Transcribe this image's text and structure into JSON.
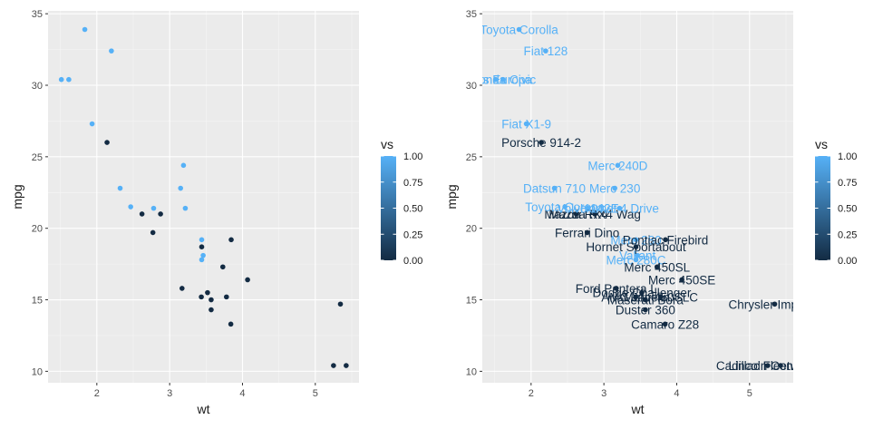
{
  "colors": {
    "panel": "#ebebeb",
    "grid_major": "#ffffff",
    "grid_minor": "#f5f5f5",
    "low": "#132b43",
    "high": "#56b1f7"
  },
  "chart_data": [
    {
      "type": "scatter",
      "xlabel": "wt",
      "ylabel": "mpg",
      "xlim": [
        1.33,
        5.6
      ],
      "ylim": [
        9.2,
        35.2
      ],
      "xticks": [
        2,
        3,
        4,
        5
      ],
      "yticks": [
        10,
        15,
        20,
        25,
        30,
        35
      ],
      "grid": true,
      "legend": {
        "title": "vs",
        "placement": "right",
        "breaks": [
          "0.00",
          "0.25",
          "0.50",
          "0.75",
          "1.00"
        ]
      },
      "points": [
        {
          "x": 2.62,
          "y": 21.0,
          "vs": 0
        },
        {
          "x": 2.875,
          "y": 21.0,
          "vs": 0
        },
        {
          "x": 2.32,
          "y": 22.8,
          "vs": 1
        },
        {
          "x": 3.215,
          "y": 21.4,
          "vs": 1
        },
        {
          "x": 3.44,
          "y": 18.7,
          "vs": 0
        },
        {
          "x": 3.46,
          "y": 18.1,
          "vs": 1
        },
        {
          "x": 3.57,
          "y": 14.3,
          "vs": 0
        },
        {
          "x": 3.19,
          "y": 24.4,
          "vs": 1
        },
        {
          "x": 3.15,
          "y": 22.8,
          "vs": 1
        },
        {
          "x": 3.44,
          "y": 19.2,
          "vs": 1
        },
        {
          "x": 3.44,
          "y": 17.8,
          "vs": 1
        },
        {
          "x": 4.07,
          "y": 16.4,
          "vs": 0
        },
        {
          "x": 3.73,
          "y": 17.3,
          "vs": 0
        },
        {
          "x": 3.78,
          "y": 15.2,
          "vs": 0
        },
        {
          "x": 5.25,
          "y": 10.4,
          "vs": 0
        },
        {
          "x": 5.424,
          "y": 10.4,
          "vs": 0
        },
        {
          "x": 5.345,
          "y": 14.7,
          "vs": 0
        },
        {
          "x": 2.2,
          "y": 32.4,
          "vs": 1
        },
        {
          "x": 1.615,
          "y": 30.4,
          "vs": 1
        },
        {
          "x": 1.835,
          "y": 33.9,
          "vs": 1
        },
        {
          "x": 2.465,
          "y": 21.5,
          "vs": 1
        },
        {
          "x": 3.52,
          "y": 15.5,
          "vs": 0
        },
        {
          "x": 3.435,
          "y": 15.2,
          "vs": 0
        },
        {
          "x": 3.84,
          "y": 13.3,
          "vs": 0
        },
        {
          "x": 3.845,
          "y": 19.2,
          "vs": 0
        },
        {
          "x": 1.935,
          "y": 27.3,
          "vs": 1
        },
        {
          "x": 2.14,
          "y": 26.0,
          "vs": 0
        },
        {
          "x": 1.513,
          "y": 30.4,
          "vs": 1
        },
        {
          "x": 3.17,
          "y": 15.8,
          "vs": 0
        },
        {
          "x": 2.77,
          "y": 19.7,
          "vs": 0
        },
        {
          "x": 3.57,
          "y": 15.0,
          "vs": 0
        },
        {
          "x": 2.78,
          "y": 21.4,
          "vs": 1
        }
      ]
    },
    {
      "type": "scatter",
      "xlabel": "wt",
      "ylabel": "mpg",
      "xlim": [
        1.33,
        5.6
      ],
      "ylim": [
        9.2,
        35.2
      ],
      "xticks": [
        2,
        3,
        4,
        5
      ],
      "yticks": [
        10,
        15,
        20,
        25,
        30,
        35
      ],
      "grid": true,
      "legend": {
        "title": "vs",
        "placement": "right",
        "breaks": [
          "0.00",
          "0.25",
          "0.50",
          "0.75",
          "1.00"
        ]
      },
      "points": [
        {
          "x": 2.62,
          "y": 21.0,
          "vs": 0,
          "label": "Mazda RX4"
        },
        {
          "x": 2.875,
          "y": 21.0,
          "vs": 0,
          "label": "Mazda RX4 Wag"
        },
        {
          "x": 2.32,
          "y": 22.8,
          "vs": 1,
          "label": "Datsun 710"
        },
        {
          "x": 3.215,
          "y": 21.4,
          "vs": 1,
          "label": "Hornet 4 Drive"
        },
        {
          "x": 3.44,
          "y": 18.7,
          "vs": 0,
          "label": "Hornet Sportabout"
        },
        {
          "x": 3.46,
          "y": 18.1,
          "vs": 1,
          "label": "Valiant"
        },
        {
          "x": 3.57,
          "y": 14.3,
          "vs": 0,
          "label": "Duster 360"
        },
        {
          "x": 3.19,
          "y": 24.4,
          "vs": 1,
          "label": "Merc 240D"
        },
        {
          "x": 3.15,
          "y": 22.8,
          "vs": 1,
          "label": "Merc 230"
        },
        {
          "x": 3.44,
          "y": 19.2,
          "vs": 1,
          "label": "Merc 280"
        },
        {
          "x": 3.44,
          "y": 17.8,
          "vs": 1,
          "label": "Merc 280C"
        },
        {
          "x": 4.07,
          "y": 16.4,
          "vs": 0,
          "label": "Merc 450SE"
        },
        {
          "x": 3.73,
          "y": 17.3,
          "vs": 0,
          "label": "Merc 450SL"
        },
        {
          "x": 3.78,
          "y": 15.2,
          "vs": 0,
          "label": "Merc 450SLC"
        },
        {
          "x": 5.25,
          "y": 10.4,
          "vs": 0,
          "label": "Cadillac Fleetwood"
        },
        {
          "x": 5.424,
          "y": 10.4,
          "vs": 0,
          "label": "Lincoln Continental"
        },
        {
          "x": 5.345,
          "y": 14.7,
          "vs": 0,
          "label": "Chrysler Imperial"
        },
        {
          "x": 2.2,
          "y": 32.4,
          "vs": 1,
          "label": "Fiat 128"
        },
        {
          "x": 1.615,
          "y": 30.4,
          "vs": 1,
          "label": "Honda Civic"
        },
        {
          "x": 1.835,
          "y": 33.9,
          "vs": 1,
          "label": "Toyota Corolla"
        },
        {
          "x": 2.465,
          "y": 21.5,
          "vs": 1,
          "label": "Toyota Corona"
        },
        {
          "x": 3.52,
          "y": 15.5,
          "vs": 0,
          "label": "Dodge Challenger"
        },
        {
          "x": 3.435,
          "y": 15.2,
          "vs": 0,
          "label": "AMC Javelin"
        },
        {
          "x": 3.84,
          "y": 13.3,
          "vs": 0,
          "label": "Camaro Z28"
        },
        {
          "x": 3.845,
          "y": 19.2,
          "vs": 0,
          "label": "Pontiac Firebird"
        },
        {
          "x": 1.935,
          "y": 27.3,
          "vs": 1,
          "label": "Fiat X1-9"
        },
        {
          "x": 2.14,
          "y": 26.0,
          "vs": 0,
          "label": "Porsche 914-2"
        },
        {
          "x": 1.513,
          "y": 30.4,
          "vs": 1,
          "label": "Lotus Europa"
        },
        {
          "x": 3.17,
          "y": 15.8,
          "vs": 0,
          "label": "Ford Pantera L"
        },
        {
          "x": 2.77,
          "y": 19.7,
          "vs": 0,
          "label": "Ferrari Dino"
        },
        {
          "x": 3.57,
          "y": 15.0,
          "vs": 0,
          "label": "Maserati Bora"
        },
        {
          "x": 2.78,
          "y": 21.4,
          "vs": 1,
          "label": "Volvo 142E"
        }
      ]
    }
  ]
}
